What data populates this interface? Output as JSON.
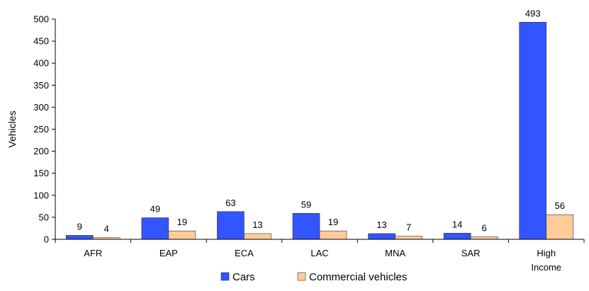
{
  "chart_data": {
    "type": "bar",
    "title": "",
    "xlabel": "",
    "ylabel": "Vehicles",
    "ylim": [
      0,
      500
    ],
    "yticks": [
      0,
      50,
      100,
      150,
      200,
      250,
      300,
      350,
      400,
      450,
      500
    ],
    "categories": [
      "AFR",
      "EAP",
      "ECA",
      "LAC",
      "MNA",
      "SAR",
      "High Income"
    ],
    "series": [
      {
        "name": "Cars",
        "color": "#3355ff",
        "values": [
          9,
          49,
          63,
          59,
          13,
          14,
          493
        ]
      },
      {
        "name": "Commercial vehicles",
        "color": "#ffcc99",
        "values": [
          4,
          19,
          13,
          19,
          7,
          6,
          56
        ]
      }
    ],
    "legend_position": "bottom",
    "grid": false
  }
}
